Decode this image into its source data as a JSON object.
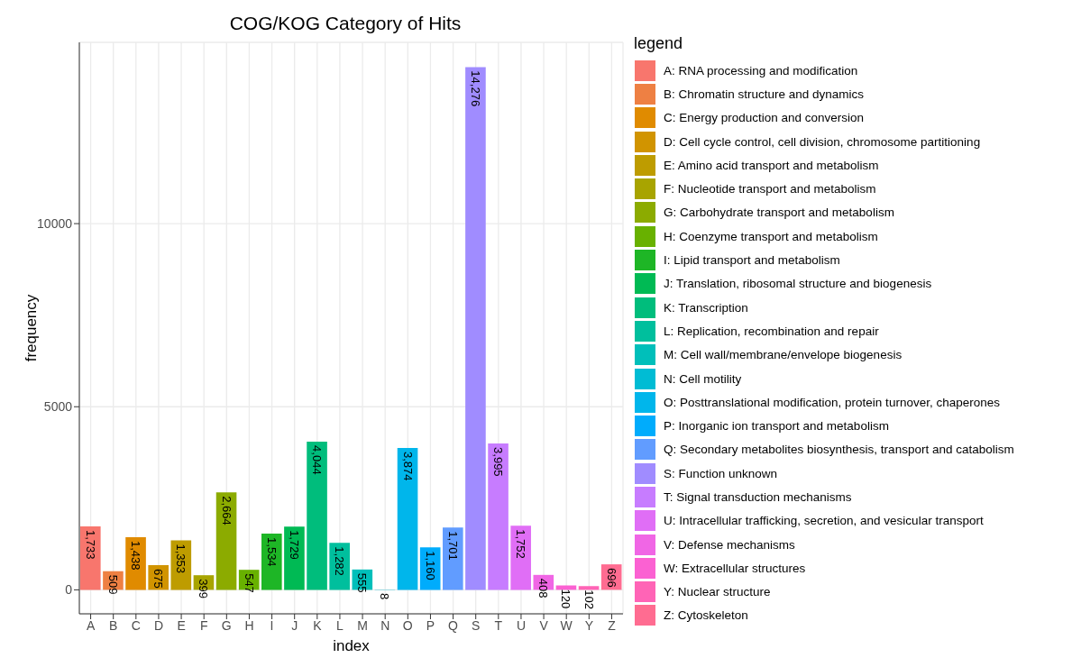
{
  "chart_data": {
    "type": "bar",
    "title": "COG/KOG Category of Hits",
    "xlabel": "index",
    "ylabel": "frequency",
    "legend_title": "legend",
    "categories": [
      "A",
      "B",
      "C",
      "D",
      "E",
      "F",
      "G",
      "H",
      "I",
      "J",
      "K",
      "L",
      "M",
      "N",
      "O",
      "P",
      "Q",
      "S",
      "T",
      "U",
      "V",
      "W",
      "Y",
      "Z"
    ],
    "stacked": true,
    "ylim": [
      -655,
      14950
    ],
    "yticks": [
      0,
      5000,
      10000
    ],
    "grid": true,
    "legend": "right",
    "series": [
      {
        "name": "A: RNA processing and modification",
        "color": "#F8766D",
        "values": [
          1733,
          null,
          null,
          null,
          null,
          null,
          null,
          null,
          null,
          null,
          null,
          null,
          null,
          null,
          null,
          null,
          null,
          null,
          null,
          null,
          null,
          null,
          null,
          null
        ],
        "value_labels": [
          "1,733",
          null,
          null,
          null,
          null,
          null,
          null,
          null,
          null,
          null,
          null,
          null,
          null,
          null,
          null,
          null,
          null,
          null,
          null,
          null,
          null,
          null,
          null,
          null
        ]
      },
      {
        "name": "B: Chromatin structure and dynamics",
        "color": "#EE8043",
        "values": [
          null,
          509,
          null,
          null,
          null,
          null,
          null,
          null,
          null,
          null,
          null,
          null,
          null,
          null,
          null,
          null,
          null,
          null,
          null,
          null,
          null,
          null,
          null,
          null
        ],
        "value_labels": [
          null,
          "509",
          null,
          null,
          null,
          null,
          null,
          null,
          null,
          null,
          null,
          null,
          null,
          null,
          null,
          null,
          null,
          null,
          null,
          null,
          null,
          null,
          null,
          null
        ]
      },
      {
        "name": "C: Energy production and conversion",
        "color": "#E08B00",
        "values": [
          null,
          null,
          1438,
          null,
          null,
          null,
          null,
          null,
          null,
          null,
          null,
          null,
          null,
          null,
          null,
          null,
          null,
          null,
          null,
          null,
          null,
          null,
          null,
          null
        ],
        "value_labels": [
          null,
          null,
          "1,438",
          null,
          null,
          null,
          null,
          null,
          null,
          null,
          null,
          null,
          null,
          null,
          null,
          null,
          null,
          null,
          null,
          null,
          null,
          null,
          null,
          null
        ]
      },
      {
        "name": "D: Cell cycle control, cell division, chromosome partitioning",
        "color": "#D19400",
        "values": [
          null,
          null,
          null,
          675,
          null,
          null,
          null,
          null,
          null,
          null,
          null,
          null,
          null,
          null,
          null,
          null,
          null,
          null,
          null,
          null,
          null,
          null,
          null,
          null
        ],
        "value_labels": [
          null,
          null,
          null,
          "675",
          null,
          null,
          null,
          null,
          null,
          null,
          null,
          null,
          null,
          null,
          null,
          null,
          null,
          null,
          null,
          null,
          null,
          null,
          null,
          null
        ]
      },
      {
        "name": "E: Amino acid transport and metabolism",
        "color": "#BE9C00",
        "values": [
          null,
          null,
          null,
          null,
          1353,
          null,
          null,
          null,
          null,
          null,
          null,
          null,
          null,
          null,
          null,
          null,
          null,
          null,
          null,
          null,
          null,
          null,
          null,
          null
        ],
        "value_labels": [
          null,
          null,
          null,
          null,
          "1,353",
          null,
          null,
          null,
          null,
          null,
          null,
          null,
          null,
          null,
          null,
          null,
          null,
          null,
          null,
          null,
          null,
          null,
          null,
          null
        ]
      },
      {
        "name": "F: Nucleotide transport and metabolism",
        "color": "#A8A400",
        "values": [
          null,
          null,
          null,
          null,
          null,
          399,
          null,
          null,
          null,
          null,
          null,
          null,
          null,
          null,
          null,
          null,
          null,
          null,
          null,
          null,
          null,
          null,
          null,
          null
        ],
        "value_labels": [
          null,
          null,
          null,
          null,
          null,
          "399",
          null,
          null,
          null,
          null,
          null,
          null,
          null,
          null,
          null,
          null,
          null,
          null,
          null,
          null,
          null,
          null,
          null,
          null
        ]
      },
      {
        "name": "G: Carbohydrate transport and metabolism",
        "color": "#8CAB00",
        "values": [
          null,
          null,
          null,
          null,
          null,
          null,
          2664,
          null,
          null,
          null,
          null,
          null,
          null,
          null,
          null,
          null,
          null,
          null,
          null,
          null,
          null,
          null,
          null,
          null
        ],
        "value_labels": [
          null,
          null,
          null,
          null,
          null,
          null,
          "2,664",
          null,
          null,
          null,
          null,
          null,
          null,
          null,
          null,
          null,
          null,
          null,
          null,
          null,
          null,
          null,
          null,
          null
        ]
      },
      {
        "name": "H: Coenzyme transport and metabolism",
        "color": "#68B100",
        "values": [
          null,
          null,
          null,
          null,
          null,
          null,
          null,
          547,
          null,
          null,
          null,
          null,
          null,
          null,
          null,
          null,
          null,
          null,
          null,
          null,
          null,
          null,
          null,
          null
        ],
        "value_labels": [
          null,
          null,
          null,
          null,
          null,
          null,
          null,
          "547",
          null,
          null,
          null,
          null,
          null,
          null,
          null,
          null,
          null,
          null,
          null,
          null,
          null,
          null,
          null,
          null
        ]
      },
      {
        "name": "I: Lipid transport and metabolism",
        "color": "#1EB626",
        "values": [
          null,
          null,
          null,
          null,
          null,
          null,
          null,
          null,
          1534,
          null,
          null,
          null,
          null,
          null,
          null,
          null,
          null,
          null,
          null,
          null,
          null,
          null,
          null,
          null
        ],
        "value_labels": [
          null,
          null,
          null,
          null,
          null,
          null,
          null,
          null,
          "1,534",
          null,
          null,
          null,
          null,
          null,
          null,
          null,
          null,
          null,
          null,
          null,
          null,
          null,
          null,
          null
        ]
      },
      {
        "name": "J: Translation, ribosomal structure and biogenesis",
        "color": "#00BA54",
        "values": [
          null,
          null,
          null,
          null,
          null,
          null,
          null,
          null,
          null,
          1729,
          null,
          null,
          null,
          null,
          null,
          null,
          null,
          null,
          null,
          null,
          null,
          null,
          null,
          null
        ],
        "value_labels": [
          null,
          null,
          null,
          null,
          null,
          null,
          null,
          null,
          null,
          "1,729",
          null,
          null,
          null,
          null,
          null,
          null,
          null,
          null,
          null,
          null,
          null,
          null,
          null,
          null
        ]
      },
      {
        "name": "K: Transcription",
        "color": "#00BD7C",
        "values": [
          null,
          null,
          null,
          null,
          null,
          null,
          null,
          null,
          null,
          null,
          4044,
          null,
          null,
          null,
          null,
          null,
          null,
          null,
          null,
          null,
          null,
          null,
          null,
          null
        ],
        "value_labels": [
          null,
          null,
          null,
          null,
          null,
          null,
          null,
          null,
          null,
          null,
          "4,044",
          null,
          null,
          null,
          null,
          null,
          null,
          null,
          null,
          null,
          null,
          null,
          null,
          null
        ]
      },
      {
        "name": "L: Replication, recombination and repair",
        "color": "#00BF9D",
        "values": [
          null,
          null,
          null,
          null,
          null,
          null,
          null,
          null,
          null,
          null,
          null,
          1282,
          null,
          null,
          null,
          null,
          null,
          null,
          null,
          null,
          null,
          null,
          null,
          null
        ],
        "value_labels": [
          null,
          null,
          null,
          null,
          null,
          null,
          null,
          null,
          null,
          null,
          null,
          "1,282",
          null,
          null,
          null,
          null,
          null,
          null,
          null,
          null,
          null,
          null,
          null,
          null
        ]
      },
      {
        "name": "M: Cell wall/membrane/envelope biogenesis",
        "color": "#00BFBA",
        "values": [
          null,
          null,
          null,
          null,
          null,
          null,
          null,
          null,
          null,
          null,
          null,
          null,
          555,
          null,
          null,
          null,
          null,
          null,
          null,
          null,
          null,
          null,
          null,
          null
        ],
        "value_labels": [
          null,
          null,
          null,
          null,
          null,
          null,
          null,
          null,
          null,
          null,
          null,
          null,
          "555",
          null,
          null,
          null,
          null,
          null,
          null,
          null,
          null,
          null,
          null,
          null
        ]
      },
      {
        "name": "N: Cell motility",
        "color": "#00BCD4",
        "values": [
          null,
          null,
          null,
          null,
          null,
          null,
          null,
          null,
          null,
          null,
          null,
          null,
          null,
          8,
          null,
          null,
          null,
          null,
          null,
          null,
          null,
          null,
          null,
          null
        ],
        "value_labels": [
          null,
          null,
          null,
          null,
          null,
          null,
          null,
          null,
          null,
          null,
          null,
          null,
          null,
          "8",
          null,
          null,
          null,
          null,
          null,
          null,
          null,
          null,
          null,
          null
        ]
      },
      {
        "name": "O: Posttranslational modification, protein turnover, chaperones",
        "color": "#00B6EB",
        "values": [
          null,
          null,
          null,
          null,
          null,
          null,
          null,
          null,
          null,
          null,
          null,
          null,
          null,
          null,
          3874,
          null,
          null,
          null,
          null,
          null,
          null,
          null,
          null,
          null
        ],
        "value_labels": [
          null,
          null,
          null,
          null,
          null,
          null,
          null,
          null,
          null,
          null,
          null,
          null,
          null,
          null,
          "3,874",
          null,
          null,
          null,
          null,
          null,
          null,
          null,
          null,
          null
        ]
      },
      {
        "name": "P: Inorganic ion transport and metabolism",
        "color": "#00ACFC",
        "values": [
          null,
          null,
          null,
          null,
          null,
          null,
          null,
          null,
          null,
          null,
          null,
          null,
          null,
          null,
          null,
          1160,
          null,
          null,
          null,
          null,
          null,
          null,
          null,
          null
        ],
        "value_labels": [
          null,
          null,
          null,
          null,
          null,
          null,
          null,
          null,
          null,
          null,
          null,
          null,
          null,
          null,
          null,
          "1,160",
          null,
          null,
          null,
          null,
          null,
          null,
          null,
          null
        ]
      },
      {
        "name": "Q: Secondary metabolites biosynthesis, transport and catabolism",
        "color": "#619CFF",
        "values": [
          null,
          null,
          null,
          null,
          null,
          null,
          null,
          null,
          null,
          null,
          null,
          null,
          null,
          null,
          null,
          null,
          1701,
          null,
          null,
          null,
          null,
          null,
          null,
          null
        ],
        "value_labels": [
          null,
          null,
          null,
          null,
          null,
          null,
          null,
          null,
          null,
          null,
          null,
          null,
          null,
          null,
          null,
          null,
          "1,701",
          null,
          null,
          null,
          null,
          null,
          null,
          null
        ]
      },
      {
        "name": "S: Function unknown",
        "color": "#A08CFF",
        "values": [
          null,
          null,
          null,
          null,
          null,
          null,
          null,
          null,
          null,
          null,
          null,
          null,
          null,
          null,
          null,
          null,
          null,
          14276,
          null,
          null,
          null,
          null,
          null,
          null
        ],
        "value_labels": [
          null,
          null,
          null,
          null,
          null,
          null,
          null,
          null,
          null,
          null,
          null,
          null,
          null,
          null,
          null,
          null,
          null,
          "14,276",
          null,
          null,
          null,
          null,
          null,
          null
        ]
      },
      {
        "name": "T: Signal transduction mechanisms",
        "color": "#C77CFF",
        "values": [
          null,
          null,
          null,
          null,
          null,
          null,
          null,
          null,
          null,
          null,
          null,
          null,
          null,
          null,
          null,
          null,
          null,
          null,
          3995,
          null,
          null,
          null,
          null,
          null
        ],
        "value_labels": [
          null,
          null,
          null,
          null,
          null,
          null,
          null,
          null,
          null,
          null,
          null,
          null,
          null,
          null,
          null,
          null,
          null,
          null,
          "3,995",
          null,
          null,
          null,
          null,
          null
        ]
      },
      {
        "name": "U: Intracellular trafficking, secretion, and vesicular transport",
        "color": "#E06EF6",
        "values": [
          null,
          null,
          null,
          null,
          null,
          null,
          null,
          null,
          null,
          null,
          null,
          null,
          null,
          null,
          null,
          null,
          null,
          null,
          null,
          1752,
          null,
          null,
          null,
          null
        ],
        "value_labels": [
          null,
          null,
          null,
          null,
          null,
          null,
          null,
          null,
          null,
          null,
          null,
          null,
          null,
          null,
          null,
          null,
          null,
          null,
          null,
          "1,752",
          null,
          null,
          null,
          null
        ]
      },
      {
        "name": "V: Defense mechanisms",
        "color": "#F066E5",
        "values": [
          null,
          null,
          null,
          null,
          null,
          null,
          null,
          null,
          null,
          null,
          null,
          null,
          null,
          null,
          null,
          null,
          null,
          null,
          null,
          null,
          408,
          null,
          null,
          null
        ],
        "value_labels": [
          null,
          null,
          null,
          null,
          null,
          null,
          null,
          null,
          null,
          null,
          null,
          null,
          null,
          null,
          null,
          null,
          null,
          null,
          null,
          null,
          "408",
          null,
          null,
          null
        ]
      },
      {
        "name": "W: Extracellular structures",
        "color": "#FB61D2",
        "values": [
          null,
          null,
          null,
          null,
          null,
          null,
          null,
          null,
          null,
          null,
          null,
          null,
          null,
          null,
          null,
          null,
          null,
          null,
          null,
          null,
          null,
          120,
          null,
          null
        ],
        "value_labels": [
          null,
          null,
          null,
          null,
          null,
          null,
          null,
          null,
          null,
          null,
          null,
          null,
          null,
          null,
          null,
          null,
          null,
          null,
          null,
          null,
          null,
          "120",
          null,
          null
        ]
      },
      {
        "name": "Y: Nuclear structure",
        "color": "#FF64B6",
        "values": [
          null,
          null,
          null,
          null,
          null,
          null,
          null,
          null,
          null,
          null,
          null,
          null,
          null,
          null,
          null,
          null,
          null,
          null,
          null,
          null,
          null,
          null,
          102,
          null
        ],
        "value_labels": [
          null,
          null,
          null,
          null,
          null,
          null,
          null,
          null,
          null,
          null,
          null,
          null,
          null,
          null,
          null,
          null,
          null,
          null,
          null,
          null,
          null,
          null,
          "102",
          null
        ]
      },
      {
        "name": "Z: Cytoskeleton",
        "color": "#FF6C91",
        "values": [
          null,
          null,
          null,
          null,
          null,
          null,
          null,
          null,
          null,
          null,
          null,
          null,
          null,
          null,
          null,
          null,
          null,
          null,
          null,
          null,
          null,
          null,
          null,
          696
        ],
        "value_labels": [
          null,
          null,
          null,
          null,
          null,
          null,
          null,
          null,
          null,
          null,
          null,
          null,
          null,
          null,
          null,
          null,
          null,
          null,
          null,
          null,
          null,
          null,
          null,
          "696"
        ]
      }
    ]
  }
}
